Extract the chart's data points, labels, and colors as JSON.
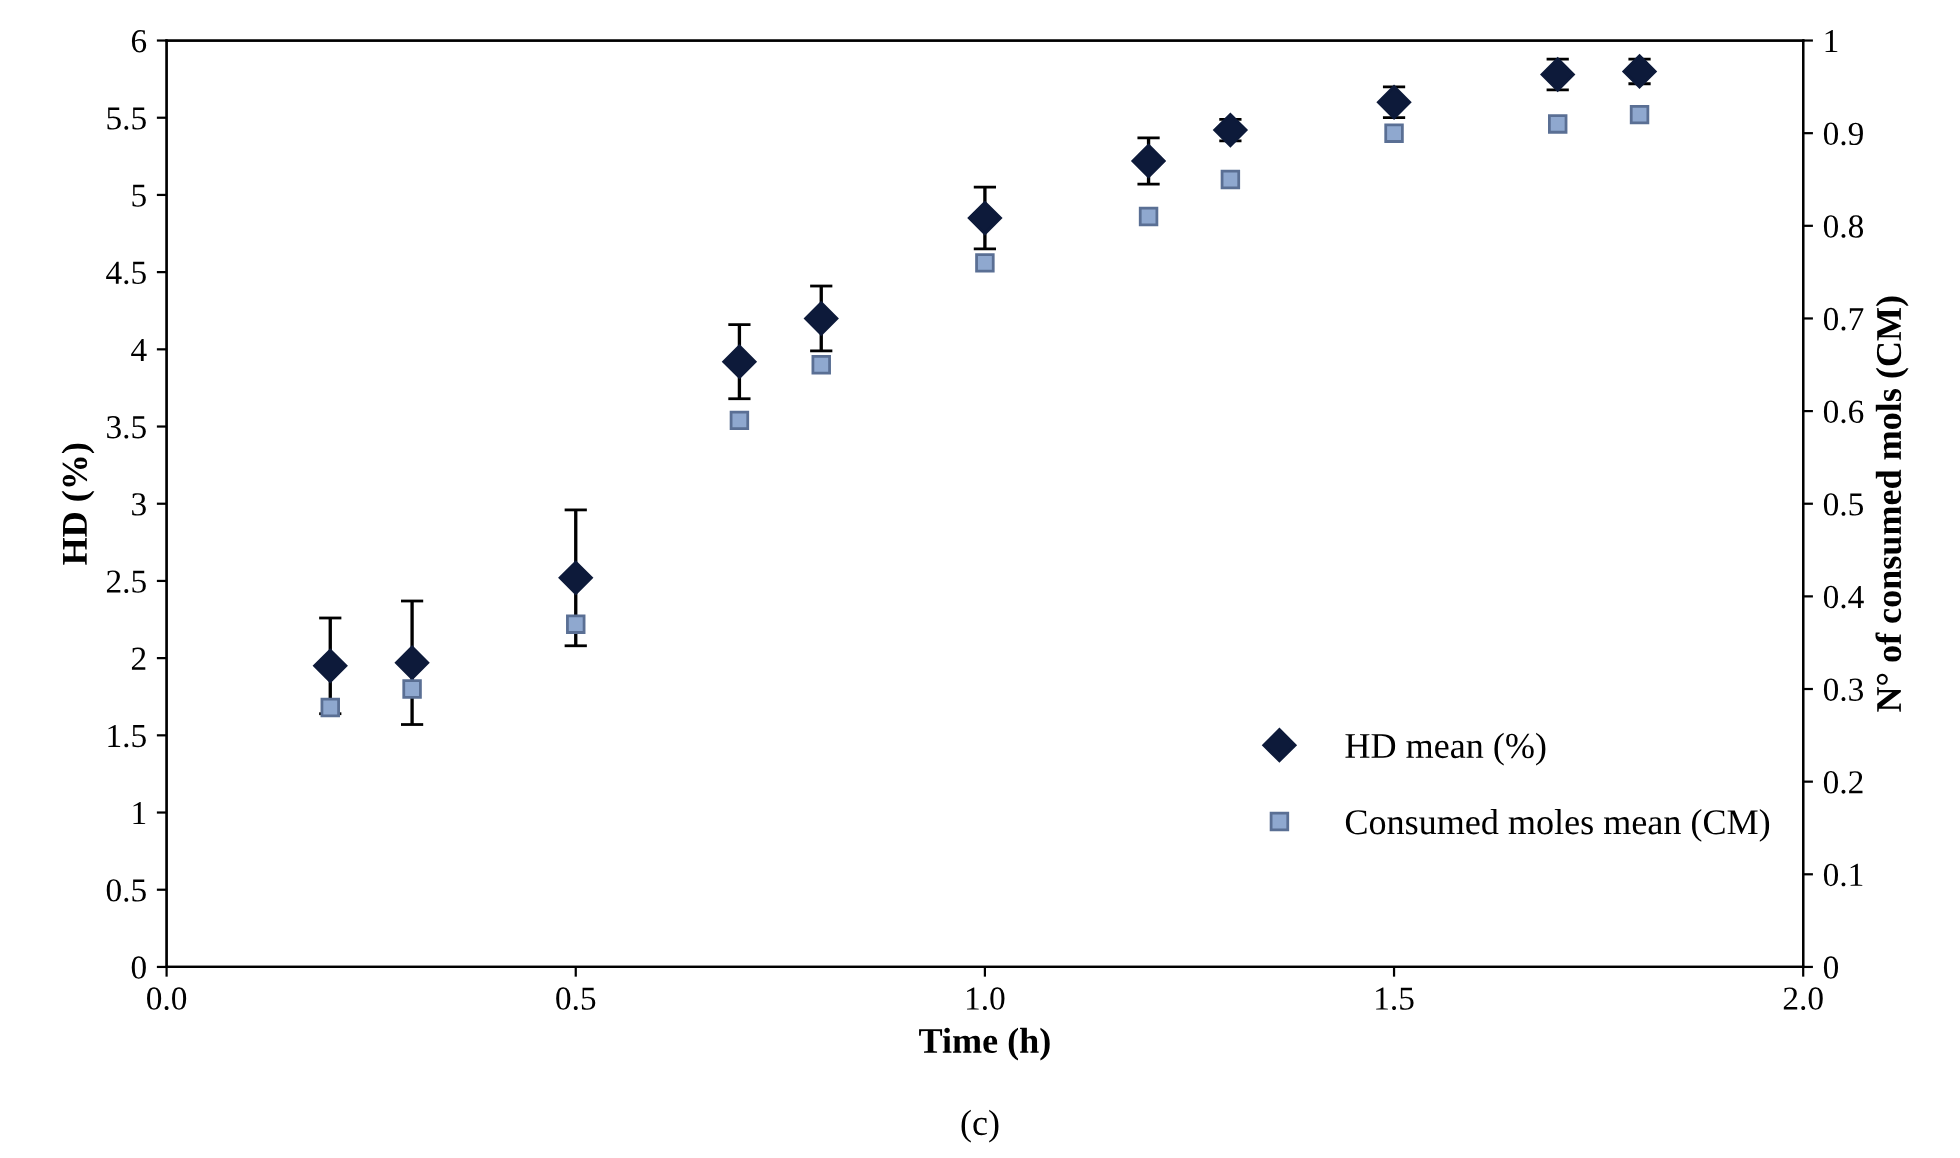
{
  "chart_data": {
    "type": "scatter",
    "xlabel": "Time (h)",
    "ylabel": "HD (%)",
    "y2label": "N° of consumed mols (CM)",
    "x": [
      0.2,
      0.3,
      0.5,
      0.7,
      0.8,
      1.0,
      1.2,
      1.3,
      1.5,
      1.7,
      1.8
    ],
    "series": [
      {
        "name": "HD mean (%)",
        "color": "#0d1a3a",
        "marker": "diamond",
        "values": [
          1.95,
          1.97,
          2.52,
          3.92,
          4.2,
          4.85,
          5.22,
          5.42,
          5.6,
          5.78,
          5.8
        ],
        "errors": [
          0.31,
          0.4,
          0.44,
          0.24,
          0.21,
          0.2,
          0.15,
          0.07,
          0.1,
          0.1,
          0.08
        ]
      },
      {
        "name": "Consumed moles mean (CM)",
        "color": "#8fa8cf",
        "marker": "square",
        "axis": "y2",
        "values": [
          0.28,
          0.3,
          0.37,
          0.59,
          0.65,
          0.76,
          0.81,
          0.85,
          0.9,
          0.91,
          0.92
        ]
      }
    ],
    "xlim": [
      0,
      2
    ],
    "xticks": [
      {
        "value": 0,
        "label": "0.0"
      },
      {
        "value": 0.5,
        "label": "0.5"
      },
      {
        "value": 1,
        "label": "1.0"
      },
      {
        "value": 1.5,
        "label": "1.5"
      },
      {
        "value": 2,
        "label": "2.0"
      }
    ],
    "ylim": [
      0,
      6
    ],
    "yticks": [
      0,
      0.5,
      1,
      1.5,
      2,
      2.5,
      3,
      3.5,
      4,
      4.5,
      5,
      5.5,
      6
    ],
    "y2lim": [
      0,
      1
    ],
    "y2ticks": [
      0,
      0.1,
      0.2,
      0.3,
      0.4,
      0.5,
      0.6,
      0.7,
      0.8,
      0.9,
      1
    ],
    "grid": false,
    "legend": "bottom right",
    "annotations": [
      "(c)"
    ]
  }
}
